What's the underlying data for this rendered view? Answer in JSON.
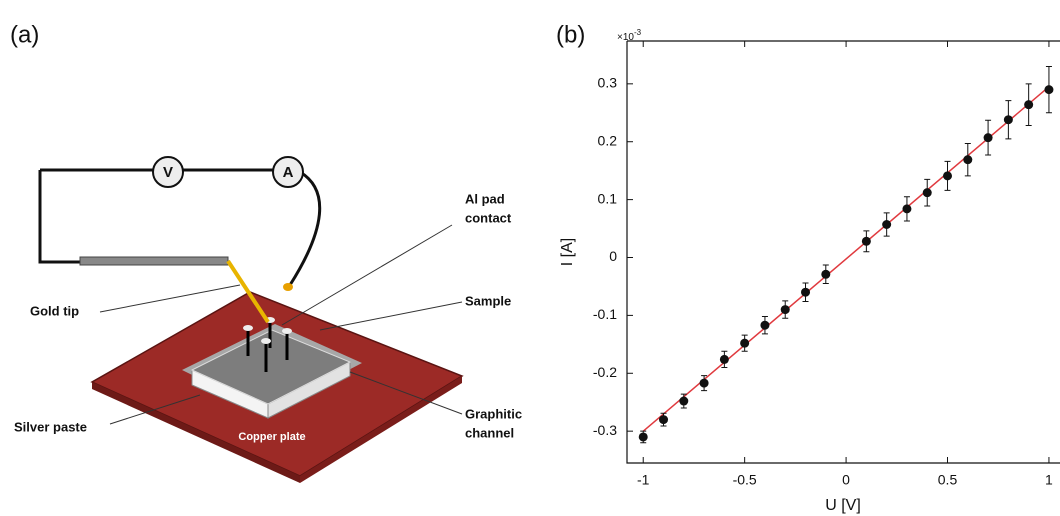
{
  "diagram": {
    "panel_label": "(a)",
    "voltmeter": "V",
    "ammeter": "A",
    "al_pad_contact": [
      "Al pad",
      "contact"
    ],
    "gold_tip": "Gold tip",
    "sample": "Sample",
    "silver_paste": "Silver paste",
    "graphitic_channel": [
      "Graphitic",
      "channel"
    ],
    "copper_plate": "Copper plate"
  },
  "chart_data": {
    "type": "scatter",
    "panel_label": "(b)",
    "xlabel": "U [V]",
    "ylabel": "I [A]",
    "y_multiplier": {
      "base": "×10",
      "exponent": "-3"
    },
    "x": [
      -1,
      -0.9,
      -0.8,
      -0.7,
      -0.6,
      -0.5,
      -0.4,
      -0.3,
      -0.2,
      -0.1,
      0.1,
      0.2,
      0.3,
      0.4,
      0.5,
      0.6,
      0.7,
      0.8,
      0.9,
      1
    ],
    "series": [
      {
        "color": "#111111",
        "values": [
          -0.31,
          -0.28,
          -0.248,
          -0.217,
          -0.176,
          -0.148,
          -0.117,
          -0.09,
          -0.06,
          -0.029,
          0.028,
          0.057,
          0.084,
          0.112,
          0.141,
          0.169,
          0.207,
          0.238,
          0.264,
          0.29
        ],
        "errors": [
          0.01,
          0.011,
          0.012,
          0.013,
          0.014,
          0.014,
          0.015,
          0.015,
          0.016,
          0.016,
          0.018,
          0.02,
          0.021,
          0.023,
          0.025,
          0.028,
          0.03,
          0.033,
          0.036,
          0.04
        ]
      }
    ],
    "fit_line": {
      "x": [
        -1,
        1
      ],
      "values": [
        -0.3,
        0.295
      ],
      "color": "#e0393e"
    },
    "xlim": [
      -1.08,
      1.02
    ],
    "ylim": [
      -0.355,
      0.374
    ],
    "xticks": [
      -1,
      -0.5,
      0,
      0.5,
      1
    ],
    "yticks": [
      -0.3,
      -0.2,
      -0.1,
      0,
      0.1,
      0.2,
      0.3
    ],
    "grid": false
  }
}
